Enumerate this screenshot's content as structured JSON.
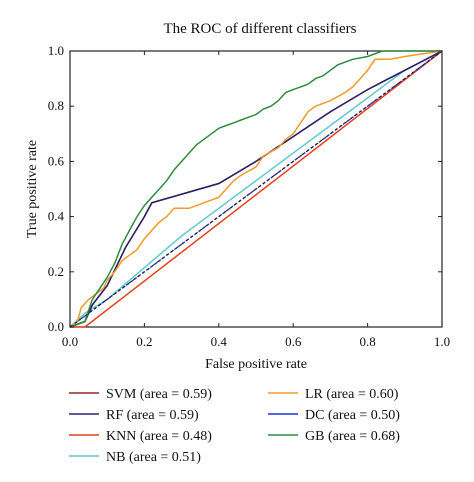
{
  "chart_data": {
    "type": "line",
    "title": "The ROC of different classifiers",
    "xlabel": "False positive rate",
    "ylabel": "True positive rate",
    "xlim": [
      0,
      1
    ],
    "ylim": [
      0,
      1
    ],
    "x_ticks": [
      "0.0",
      "0.2",
      "0.4",
      "0.6",
      "0.8",
      "1.0"
    ],
    "y_ticks": [
      "0.0",
      "0.2",
      "0.4",
      "0.6",
      "0.8",
      "1.0"
    ],
    "grid": false,
    "legend_position": "below",
    "series": [
      {
        "name": "SVM (area = 0.59)",
        "color": "#8b2a2a",
        "points": [
          [
            0,
            0
          ],
          [
            0.04,
            0.02
          ],
          [
            0.06,
            0.08
          ],
          [
            0.1,
            0.15
          ],
          [
            0.15,
            0.29
          ],
          [
            0.2,
            0.4
          ],
          [
            0.22,
            0.45
          ],
          [
            0.4,
            0.52
          ],
          [
            0.5,
            0.6
          ],
          [
            0.6,
            0.69
          ],
          [
            0.7,
            0.78
          ],
          [
            0.8,
            0.86
          ],
          [
            0.9,
            0.93
          ],
          [
            1,
            1
          ]
        ]
      },
      {
        "name": "RF (area = 0.59)",
        "color": "#2a2470",
        "points": [
          [
            0,
            0
          ],
          [
            0.04,
            0.02
          ],
          [
            0.06,
            0.08
          ],
          [
            0.1,
            0.15
          ],
          [
            0.15,
            0.29
          ],
          [
            0.2,
            0.4
          ],
          [
            0.22,
            0.45
          ],
          [
            0.4,
            0.52
          ],
          [
            0.5,
            0.6
          ],
          [
            0.6,
            0.69
          ],
          [
            0.7,
            0.78
          ],
          [
            0.8,
            0.86
          ],
          [
            0.9,
            0.93
          ],
          [
            1,
            1
          ]
        ]
      },
      {
        "name": "KNN (area = 0.48)",
        "color": "#e8401c",
        "points": [
          [
            0,
            0
          ],
          [
            0.04,
            0
          ],
          [
            1,
            1
          ]
        ]
      },
      {
        "name": "NB (area = 0.51)",
        "color": "#5fc9cd",
        "points": [
          [
            0,
            0
          ],
          [
            0.04,
            0.05
          ],
          [
            0.1,
            0.1
          ],
          [
            0.3,
            0.33
          ],
          [
            0.5,
            0.53
          ],
          [
            0.7,
            0.73
          ],
          [
            0.9,
            0.93
          ],
          [
            1,
            1
          ]
        ]
      },
      {
        "name": "LR (area = 0.60)",
        "color": "#f39a2b",
        "points": [
          [
            0,
            0
          ],
          [
            0.02,
            0.02
          ],
          [
            0.03,
            0.07
          ],
          [
            0.05,
            0.1
          ],
          [
            0.07,
            0.12
          ],
          [
            0.09,
            0.14
          ],
          [
            0.1,
            0.17
          ],
          [
            0.12,
            0.2
          ],
          [
            0.14,
            0.24
          ],
          [
            0.16,
            0.26
          ],
          [
            0.18,
            0.28
          ],
          [
            0.2,
            0.32
          ],
          [
            0.22,
            0.35
          ],
          [
            0.24,
            0.38
          ],
          [
            0.26,
            0.4
          ],
          [
            0.28,
            0.43
          ],
          [
            0.32,
            0.43
          ],
          [
            0.36,
            0.45
          ],
          [
            0.4,
            0.47
          ],
          [
            0.42,
            0.5
          ],
          [
            0.44,
            0.53
          ],
          [
            0.46,
            0.55
          ],
          [
            0.5,
            0.58
          ],
          [
            0.52,
            0.62
          ],
          [
            0.56,
            0.65
          ],
          [
            0.58,
            0.68
          ],
          [
            0.6,
            0.7
          ],
          [
            0.62,
            0.74
          ],
          [
            0.64,
            0.78
          ],
          [
            0.66,
            0.8
          ],
          [
            0.7,
            0.82
          ],
          [
            0.74,
            0.85
          ],
          [
            0.76,
            0.87
          ],
          [
            0.78,
            0.9
          ],
          [
            0.8,
            0.93
          ],
          [
            0.82,
            0.97
          ],
          [
            0.84,
            0.97
          ],
          [
            0.86,
            0.97
          ],
          [
            0.9,
            0.98
          ],
          [
            1,
            1
          ]
        ]
      },
      {
        "name": "DC (area = 0.50)",
        "color": "#1f2ee0",
        "dashed_reference": true,
        "points": [
          [
            0,
            0
          ],
          [
            1,
            1
          ]
        ]
      },
      {
        "name": "GB (area = 0.68)",
        "color": "#2f8a3f",
        "points": [
          [
            0,
            0
          ],
          [
            0.04,
            0.02
          ],
          [
            0.06,
            0.1
          ],
          [
            0.08,
            0.14
          ],
          [
            0.1,
            0.18
          ],
          [
            0.12,
            0.23
          ],
          [
            0.14,
            0.3
          ],
          [
            0.16,
            0.35
          ],
          [
            0.18,
            0.4
          ],
          [
            0.2,
            0.44
          ],
          [
            0.22,
            0.47
          ],
          [
            0.24,
            0.5
          ],
          [
            0.26,
            0.53
          ],
          [
            0.28,
            0.57
          ],
          [
            0.3,
            0.6
          ],
          [
            0.32,
            0.63
          ],
          [
            0.34,
            0.66
          ],
          [
            0.36,
            0.68
          ],
          [
            0.38,
            0.7
          ],
          [
            0.4,
            0.72
          ],
          [
            0.42,
            0.73
          ],
          [
            0.44,
            0.74
          ],
          [
            0.46,
            0.75
          ],
          [
            0.48,
            0.76
          ],
          [
            0.5,
            0.77
          ],
          [
            0.52,
            0.79
          ],
          [
            0.54,
            0.8
          ],
          [
            0.56,
            0.82
          ],
          [
            0.58,
            0.85
          ],
          [
            0.6,
            0.86
          ],
          [
            0.62,
            0.87
          ],
          [
            0.64,
            0.88
          ],
          [
            0.66,
            0.9
          ],
          [
            0.68,
            0.91
          ],
          [
            0.7,
            0.93
          ],
          [
            0.72,
            0.95
          ],
          [
            0.76,
            0.97
          ],
          [
            0.8,
            0.98
          ],
          [
            0.84,
            1
          ],
          [
            0.9,
            1
          ],
          [
            0.95,
            1
          ],
          [
            1,
            1
          ]
        ]
      }
    ]
  }
}
